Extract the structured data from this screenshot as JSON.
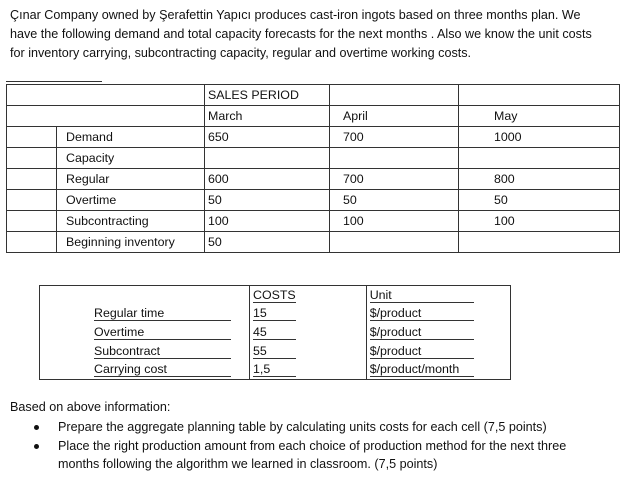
{
  "intro": {
    "text": "Çınar Company owned by Şerafettin Yapıcı produces cast-iron ingots based on three months plan. We have the following demand and total capacity forecasts for the next months . Also we know the unit costs for inventory carrying, subcontracting capacity, regular and overtime working costs."
  },
  "sales_table": {
    "header": "SALES PERIOD",
    "periods": [
      "March",
      "April",
      "May"
    ],
    "rows": [
      {
        "label": "Demand",
        "values": [
          "650",
          "700",
          "1000"
        ]
      },
      {
        "label": "Capacity",
        "values": [
          "",
          "",
          ""
        ]
      },
      {
        "label": "Regular",
        "values": [
          "600",
          "700",
          "800"
        ]
      },
      {
        "label": "Overtime",
        "values": [
          "50",
          "50",
          "50"
        ]
      },
      {
        "label": "Subcontracting",
        "values": [
          "100",
          "100",
          "100"
        ]
      },
      {
        "label": "Beginning inventory",
        "values": [
          "50",
          "",
          ""
        ]
      }
    ]
  },
  "costs_table": {
    "header_costs": "COSTS",
    "header_unit": "Unit",
    "rows": [
      {
        "label": "Regular time",
        "cost": "15",
        "unit": "$/product"
      },
      {
        "label": "Overtime",
        "cost": "45",
        "unit": "$/product"
      },
      {
        "label": "Subcontract",
        "cost": "55",
        "unit": "$/product"
      },
      {
        "label": "Carrying cost",
        "cost": "1,5",
        "unit": "$/product/month"
      }
    ]
  },
  "instructions": {
    "lead": "Based on above information:",
    "items": [
      "Prepare the aggregate planning table by calculating units costs for each cell (7,5 points)",
      "Place the right production amount from each choice of production method for the next three months following the algorithm we learned in classroom. (7,5 points)"
    ]
  }
}
